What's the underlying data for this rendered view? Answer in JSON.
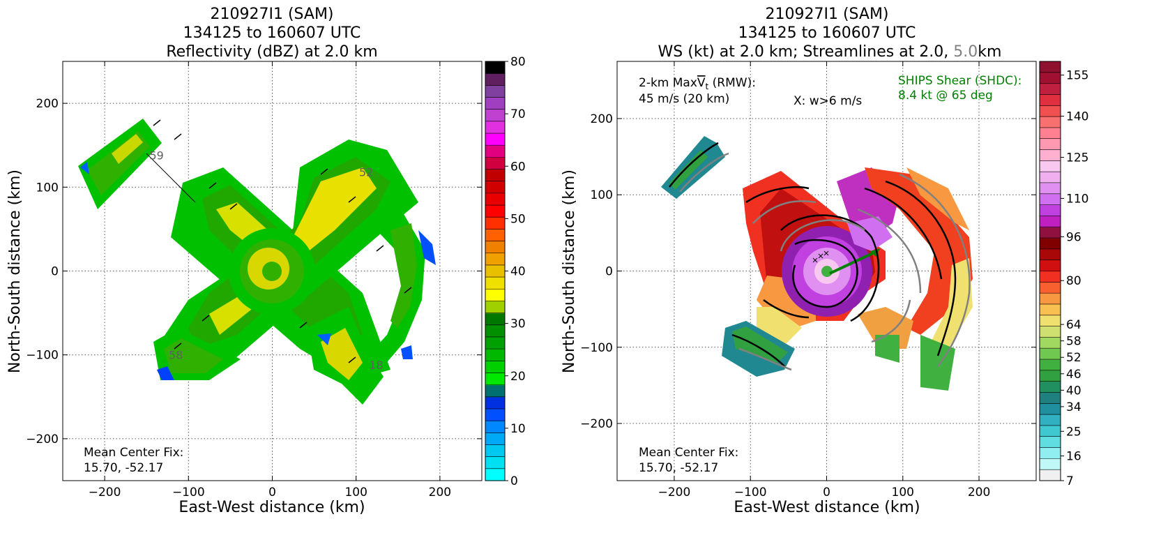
{
  "chart_data": [
    {
      "type": "heatmap",
      "title_lines": [
        "210927I1 (SAM)",
        "134125 to 160607 UTC",
        "Reflectivity (dBZ) at 2.0 km"
      ],
      "xlabel": "East-West distance (km)",
      "ylabel": "North-South distance (km)",
      "xlim": [
        -250,
        250
      ],
      "ylim": [
        -250,
        250
      ],
      "xticks": [
        -200,
        -100,
        0,
        100,
        200
      ],
      "yticks": [
        -200,
        -100,
        0,
        100,
        200
      ],
      "xtick_labels": [
        "−200",
        "−100",
        "0",
        "100",
        "200"
      ],
      "ytick_labels": [
        "−200",
        "−100",
        "0",
        "100",
        "200"
      ],
      "grid": true,
      "annotation_lines": [
        "Mean Center Fix:",
        "15.70, -52.17"
      ],
      "swath_labels": [
        {
          "text": "59",
          "x": -138,
          "y": 138
        },
        {
          "text": "52",
          "x": 112,
          "y": 118
        },
        {
          "text": "58",
          "x": -115,
          "y": -100
        },
        {
          "text": "18",
          "x": 124,
          "y": -112
        }
      ],
      "colorbar": {
        "min": 0,
        "max": 80,
        "tick_values": [
          0,
          10,
          20,
          30,
          40,
          50,
          60,
          70,
          80
        ],
        "tick_labels": [
          "0",
          "10",
          "20",
          "30",
          "40",
          "50",
          "60",
          "70",
          "80"
        ],
        "colors": [
          "#00ffff",
          "#00e0f0",
          "#00c8f0",
          "#00a8f8",
          "#0088ff",
          "#0050ff",
          "#0030e0",
          "#007070",
          "#00e800",
          "#00d000",
          "#00b800",
          "#00a000",
          "#009000",
          "#007800",
          "#a0d000",
          "#ffff00",
          "#f0e000",
          "#e8c000",
          "#f0a000",
          "#f08000",
          "#ff6000",
          "#ff3000",
          "#ff0000",
          "#e80000",
          "#d00000",
          "#c00000",
          "#d00040",
          "#e00080",
          "#ff00ff",
          "#e030e0",
          "#c040d0",
          "#a040c0",
          "#8040a0",
          "#602060",
          "#000000"
        ]
      }
    },
    {
      "type": "heatmap",
      "title_lines": [
        "210927I1 (SAM)",
        "134125 to 160607 UTC"
      ],
      "title_line3": {
        "before": "WS (kt) at 2.0 km; Streamlines at 2.0, ",
        "gray": "5.0",
        "after": "km"
      },
      "xlabel": "East-West distance (km)",
      "ylabel": "North-South distance (km)",
      "xlim": [
        -275,
        275
      ],
      "ylim": [
        -275,
        275
      ],
      "xticks": [
        -200,
        -100,
        0,
        100,
        200
      ],
      "yticks": [
        -200,
        -100,
        0,
        100,
        200
      ],
      "xtick_labels": [
        "−200",
        "−100",
        "0",
        "100",
        "200"
      ],
      "ytick_labels": [
        "−200",
        "−100",
        "0",
        "100",
        "200"
      ],
      "grid": true,
      "annotation_lines": [
        "Mean Center Fix:",
        "15.70, -52.17"
      ],
      "maxvt_label": {
        "prefix": "2-km Max",
        "v": "V",
        "sub": "t",
        "suffix": " (RMW):",
        "value": "45 m/s (20 km)"
      },
      "w_label": "X: w>6 m/s",
      "shear_lines": [
        "SHIPS Shear (SHDC):",
        "8.4 kt @ 65 deg"
      ],
      "shear_color": "#008000",
      "colorbar": {
        "min": 7,
        "max": 160,
        "tick_values": [
          7,
          16,
          25,
          34,
          40,
          46,
          52,
          58,
          64,
          80,
          96,
          110,
          125,
          140,
          155
        ],
        "tick_labels": [
          "7",
          "16",
          "25",
          "34",
          "40",
          "46",
          "52",
          "58",
          "64",
          "80",
          "96",
          "110",
          "125",
          "140",
          "155"
        ],
        "colors": [
          "#f0f0f0",
          "#c0f8f8",
          "#90eef0",
          "#60dde0",
          "#40c8d0",
          "#30b0c0",
          "#2090a0",
          "#208080",
          "#209060",
          "#30a040",
          "#40b040",
          "#70c850",
          "#a0d860",
          "#d0e070",
          "#f0e070",
          "#f8c050",
          "#f89840",
          "#f86030",
          "#f03020",
          "#d01010",
          "#a80808",
          "#800000",
          "#901040",
          "#c020c0",
          "#c040e0",
          "#d070f0",
          "#e090f0",
          "#f0b0f0",
          "#f8c8f0",
          "#ffb0d0",
          "#ff98b0",
          "#ff8090",
          "#f87070",
          "#f05050",
          "#e03040",
          "#c02040",
          "#a01030",
          "#901030"
        ]
      }
    }
  ]
}
